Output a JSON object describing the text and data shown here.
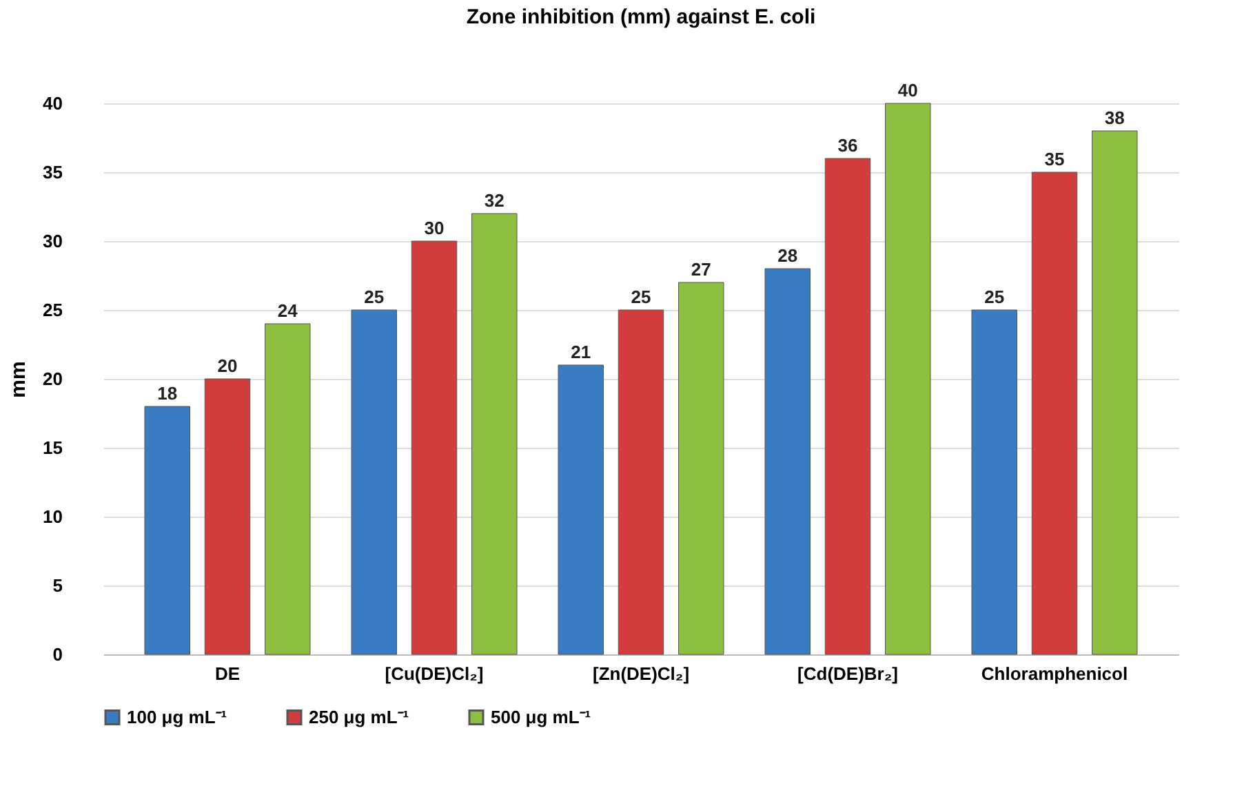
{
  "chart_data": {
    "type": "bar",
    "title": "Zone inhibition (mm) against E. coli",
    "ylabel": "mm",
    "categories": [
      "DE",
      "[Cu(DE)Cl₂]",
      "[Zn(DE)Cl₂]",
      "[Cd(DE)Br₂]",
      "Chloramphenicol"
    ],
    "series": [
      {
        "name": "100 μg mL⁻¹",
        "color": "#3a7cc4",
        "values": [
          18,
          25,
          21,
          28,
          25
        ]
      },
      {
        "name": "250 μg mL⁻¹",
        "color": "#d23c3c",
        "values": [
          20,
          30,
          25,
          36,
          35
        ]
      },
      {
        "name": "500 μg mL⁻¹",
        "color": "#8cbf3f",
        "values": [
          24,
          32,
          27,
          40,
          38
        ]
      }
    ],
    "ylim": [
      0,
      40
    ],
    "yticks": [
      0,
      5,
      10,
      15,
      20,
      25,
      30,
      35,
      40
    ],
    "grid": "y",
    "legend": "bottom",
    "data_labels": true
  }
}
